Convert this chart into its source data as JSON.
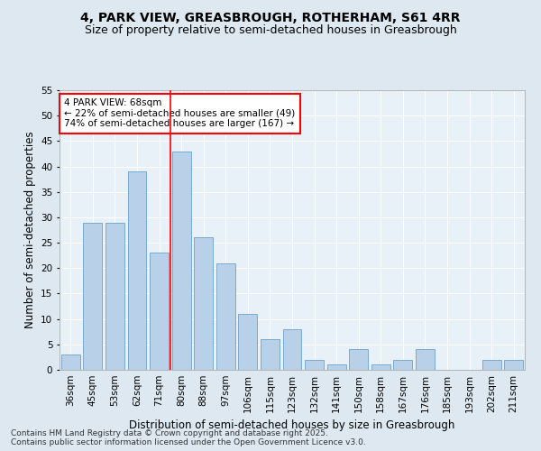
{
  "title1": "4, PARK VIEW, GREASBROUGH, ROTHERHAM, S61 4RR",
  "title2": "Size of property relative to semi-detached houses in Greasbrough",
  "xlabel": "Distribution of semi-detached houses by size in Greasbrough",
  "ylabel": "Number of semi-detached properties",
  "categories": [
    "36sqm",
    "45sqm",
    "53sqm",
    "62sqm",
    "71sqm",
    "80sqm",
    "88sqm",
    "97sqm",
    "106sqm",
    "115sqm",
    "123sqm",
    "132sqm",
    "141sqm",
    "150sqm",
    "158sqm",
    "167sqm",
    "176sqm",
    "185sqm",
    "193sqm",
    "202sqm",
    "211sqm"
  ],
  "values": [
    3,
    29,
    29,
    39,
    23,
    43,
    26,
    21,
    11,
    6,
    8,
    2,
    1,
    4,
    1,
    2,
    4,
    0,
    0,
    2,
    2
  ],
  "bar_color": "#b8d0e8",
  "bar_edge_color": "#7aaad0",
  "red_line_x": 4.5,
  "ylim": [
    0,
    55
  ],
  "yticks": [
    0,
    5,
    10,
    15,
    20,
    25,
    30,
    35,
    40,
    45,
    50,
    55
  ],
  "annotation_title": "4 PARK VIEW: 68sqm",
  "annotation_line1": "← 22% of semi-detached houses are smaller (49)",
  "annotation_line2": "74% of semi-detached houses are larger (167) →",
  "footer1": "Contains HM Land Registry data © Crown copyright and database right 2025.",
  "footer2": "Contains public sector information licensed under the Open Government Licence v3.0.",
  "bg_color": "#dde8f0",
  "plot_bg_color": "#e8f0f8",
  "grid_color": "#ffffff",
  "title_fontsize": 10,
  "subtitle_fontsize": 9,
  "axis_label_fontsize": 8.5,
  "tick_fontsize": 7.5,
  "annotation_fontsize": 7.5,
  "footer_fontsize": 6.5
}
